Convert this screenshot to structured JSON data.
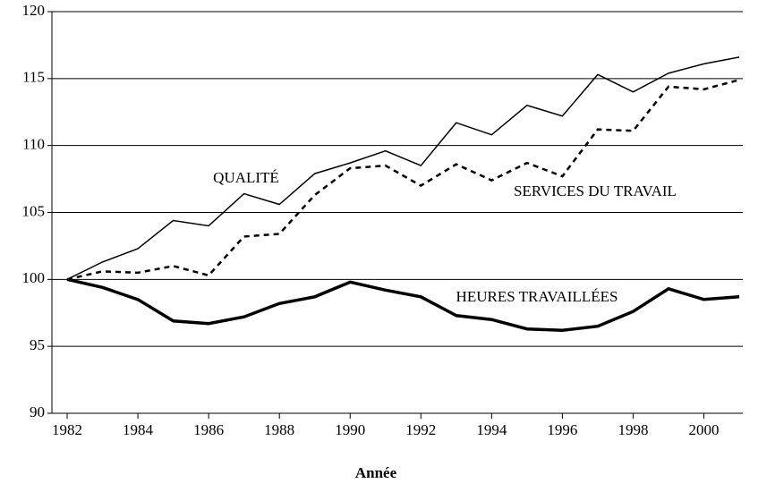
{
  "chart_data": {
    "type": "line",
    "x_label": "Année",
    "x": [
      1982,
      1983,
      1984,
      1985,
      1986,
      1987,
      1988,
      1989,
      1990,
      1991,
      1992,
      1993,
      1994,
      1995,
      1996,
      1997,
      1998,
      1999,
      2000,
      2001
    ],
    "series": [
      {
        "name": "QUALITÉ",
        "color": "#000000",
        "width": 1.5,
        "dashed": false,
        "values": [
          100,
          101.3,
          102.3,
          104.4,
          104.0,
          106.4,
          105.6,
          107.9,
          108.7,
          109.6,
          108.5,
          111.7,
          110.8,
          113.0,
          112.2,
          115.3,
          114.0,
          115.4,
          116.1,
          116.6
        ]
      },
      {
        "name": "SERVICES DU TRAVAIL",
        "color": "#000000",
        "width": 2.5,
        "dashed": true,
        "values": [
          100,
          100.6,
          100.5,
          101.0,
          100.3,
          103.2,
          103.4,
          106.3,
          108.3,
          108.5,
          107.0,
          108.6,
          107.4,
          108.7,
          107.7,
          111.2,
          111.1,
          114.4,
          114.2,
          114.9
        ]
      },
      {
        "name": "HEURES TRAVAILLÉES",
        "color": "#000000",
        "width": 3.5,
        "dashed": false,
        "values": [
          100,
          99.4,
          98.5,
          96.9,
          96.7,
          97.2,
          98.2,
          98.7,
          99.8,
          99.2,
          98.7,
          97.3,
          97.0,
          96.3,
          96.2,
          96.5,
          97.6,
          99.3,
          98.5,
          98.7
        ]
      }
    ],
    "xlim": [
      1981.57,
      2001.1
    ],
    "xticks": [
      1982,
      1984,
      1986,
      1988,
      1990,
      1992,
      1994,
      1996,
      1998,
      2000
    ],
    "ylim": [
      90,
      120
    ],
    "yticks": [
      90,
      95,
      100,
      105,
      110,
      115,
      120
    ],
    "grid": true
  }
}
